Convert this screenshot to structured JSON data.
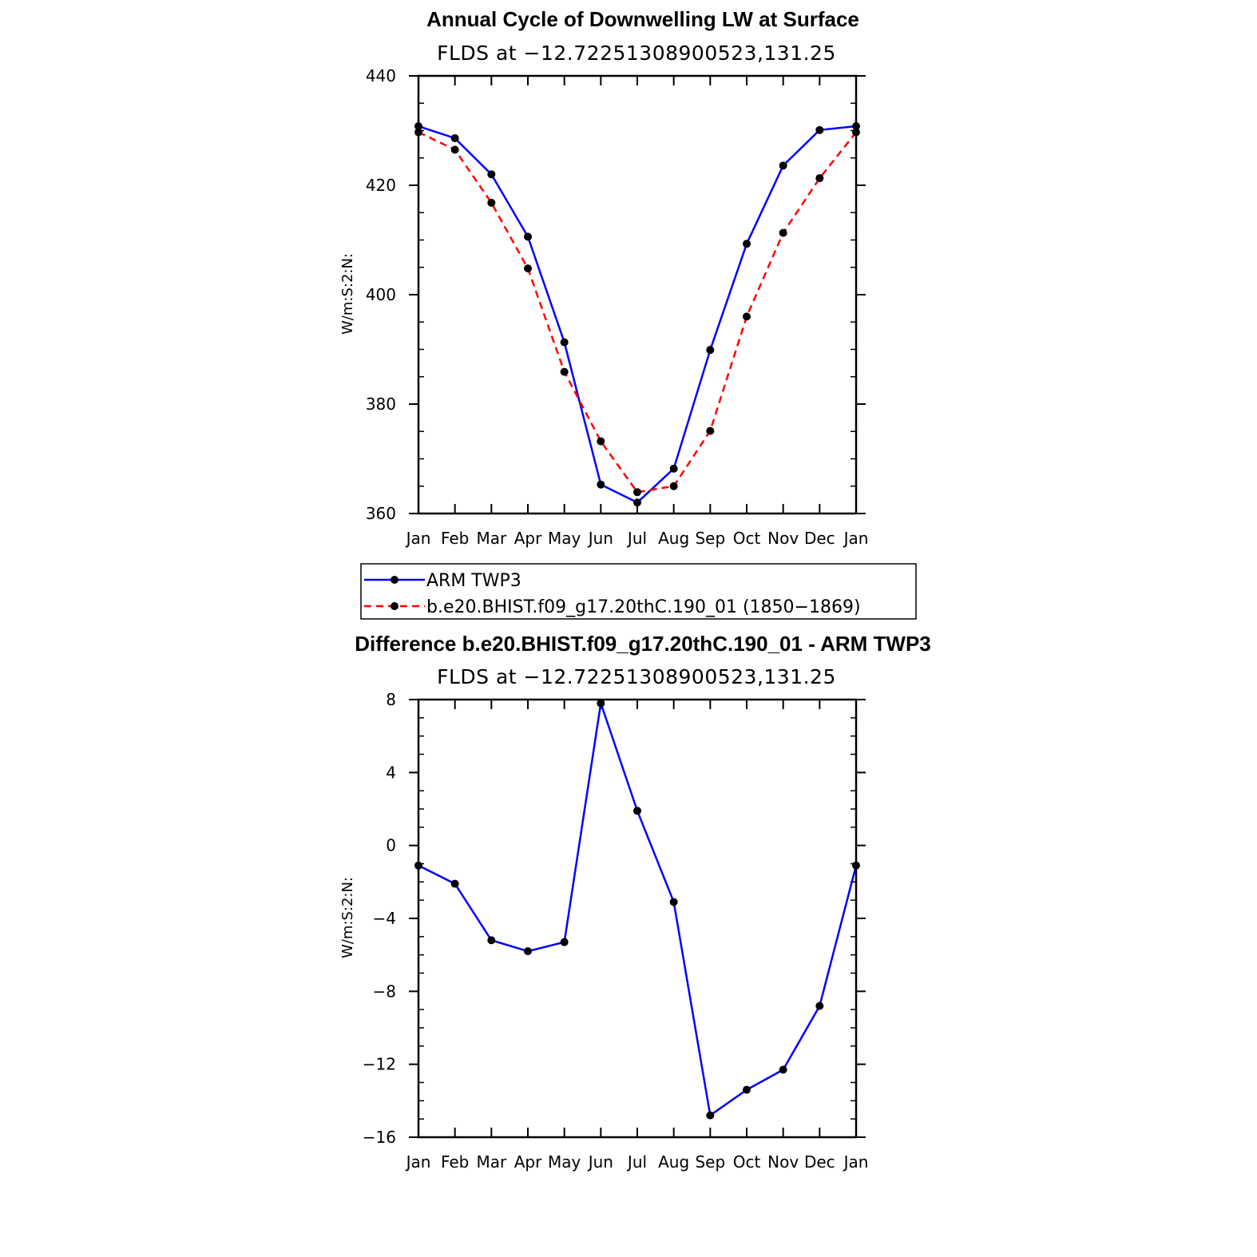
{
  "chart_data": [
    {
      "type": "line",
      "title": "Annual Cycle of Downwelling LW at Surface",
      "subtitle": "FLDS at −12.72251308900523,131.25",
      "ylabel": "W/m:S:2:N:",
      "xlabel": "",
      "categories": [
        "Jan",
        "Feb",
        "Mar",
        "Apr",
        "May",
        "Jun",
        "Jul",
        "Aug",
        "Sep",
        "Oct",
        "Nov",
        "Dec",
        "Jan"
      ],
      "ylim": [
        360,
        440
      ],
      "yticks": [
        360,
        380,
        400,
        420,
        440
      ],
      "ytick_labels": [
        "360",
        "380",
        "400",
        "420",
        "440"
      ],
      "yminor_step": 5,
      "series": [
        {
          "name": "ARM TWP3",
          "color": "#0000ff",
          "dash": "solid",
          "values": [
            430.8,
            428.6,
            422.0,
            410.6,
            391.3,
            365.3,
            362.0,
            368.2,
            389.9,
            409.3,
            423.6,
            430.1,
            430.8
          ]
        },
        {
          "name": "b.e20.BHIST.f09_g17.20thC.190_01 (1850−1869)",
          "color": "#ff0000",
          "dash": "dashed",
          "values": [
            429.7,
            426.5,
            416.8,
            404.8,
            385.9,
            373.2,
            363.9,
            365.0,
            375.1,
            396.0,
            411.3,
            421.3,
            429.7
          ]
        }
      ],
      "legend": {
        "placement": "bottom",
        "entries": [
          "ARM TWP3",
          "b.e20.BHIST.f09_g17.20thC.190_01 (1850−1869)"
        ]
      }
    },
    {
      "type": "line",
      "title": "Difference b.e20.BHIST.f09_g17.20thC.190_01 - ARM TWP3",
      "subtitle": "FLDS at −12.72251308900523,131.25",
      "ylabel": "W/m:S:2:N:",
      "xlabel": "",
      "categories": [
        "Jan",
        "Feb",
        "Mar",
        "Apr",
        "May",
        "Jun",
        "Jul",
        "Aug",
        "Sep",
        "Oct",
        "Nov",
        "Dec",
        "Jan"
      ],
      "ylim": [
        -16,
        8
      ],
      "yticks": [
        -16,
        -12,
        -8,
        -4,
        0,
        4,
        8
      ],
      "ytick_labels": [
        "−16",
        "−12",
        "−8",
        "−4",
        "0",
        "4",
        "8"
      ],
      "yminor_step": 1,
      "series": [
        {
          "color": "#0000ff",
          "dash": "solid",
          "values": [
            -1.1,
            -2.1,
            -5.2,
            -5.8,
            -5.3,
            7.8,
            1.9,
            -3.1,
            -14.8,
            -13.4,
            -12.3,
            -8.8,
            -1.1
          ]
        }
      ]
    }
  ]
}
